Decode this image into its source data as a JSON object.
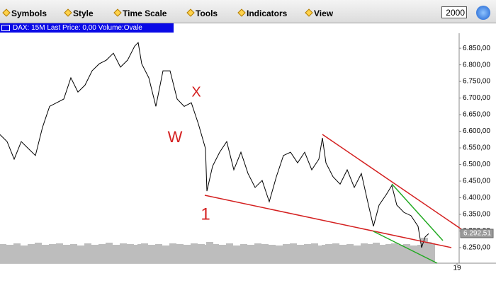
{
  "toolbar": {
    "menus": [
      "Symbols",
      "Style",
      "Time Scale",
      "Tools",
      "Indicators",
      "View"
    ],
    "year_input": "2000"
  },
  "chart_data": {
    "type": "line",
    "title": "DAX: 15M Last Price: 0,00 Volume:Ovale",
    "x": [
      0,
      10,
      20,
      30,
      40,
      50,
      60,
      70,
      80,
      90,
      100,
      110,
      120,
      130,
      140,
      150,
      160,
      170,
      180,
      190,
      195,
      200,
      210,
      220,
      230,
      240,
      250,
      260,
      270,
      280,
      290,
      292,
      300,
      310,
      320,
      330,
      340,
      350,
      360,
      370,
      380,
      390,
      400,
      410,
      420,
      430,
      440,
      450,
      455,
      460,
      470,
      480,
      490,
      500,
      510,
      520,
      527,
      535,
      545,
      553,
      560,
      570,
      580,
      590,
      595,
      600,
      605
    ],
    "series": [
      {
        "name": "Last Price",
        "color": "#000000",
        "values": [
          6590,
          6569,
          6516,
          6569,
          6548,
          6527,
          6612,
          6675,
          6686,
          6697,
          6761,
          6718,
          6739,
          6782,
          6803,
          6814,
          6835,
          6793,
          6814,
          6856,
          6867,
          6803,
          6761,
          6675,
          6782,
          6782,
          6697,
          6675,
          6686,
          6622,
          6548,
          6420,
          6495,
          6537,
          6569,
          6484,
          6537,
          6473,
          6431,
          6452,
          6388,
          6463,
          6527,
          6537,
          6505,
          6537,
          6484,
          6516,
          6580,
          6505,
          6463,
          6441,
          6484,
          6431,
          6473,
          6378,
          6314,
          6378,
          6409,
          6437,
          6378,
          6356,
          6346,
          6314,
          6250,
          6282,
          6292
        ]
      },
      {
        "name": "Volume",
        "color": "#bdbdbd",
        "axis": "y2",
        "values": [
          27,
          26,
          28,
          25,
          27,
          29,
          26,
          27,
          28,
          26,
          27,
          25,
          28,
          26,
          27,
          29,
          26,
          28,
          27,
          26,
          27,
          28,
          26,
          27,
          25,
          28,
          27,
          26,
          28,
          27,
          26,
          30,
          27,
          26,
          28,
          25,
          27,
          26,
          28,
          27,
          26,
          25,
          27,
          28,
          26,
          27,
          28,
          25,
          26,
          27,
          28,
          26,
          27,
          25,
          28,
          27,
          29,
          26,
          27,
          28,
          26,
          27,
          25,
          26,
          36,
          30,
          28
        ]
      }
    ],
    "xlim": [
      0,
      648
    ],
    "xticks": [
      {
        "value": 645,
        "label": "19"
      }
    ],
    "ylim": [
      6203,
      6895
    ],
    "yticks": [
      {
        "value": 6250,
        "label": "6.250,00"
      },
      {
        "value": 6300,
        "label": "6.300,00"
      },
      {
        "value": 6350,
        "label": "6.350,00"
      },
      {
        "value": 6400,
        "label": "6.400,00"
      },
      {
        "value": 6450,
        "label": "6.450,00"
      },
      {
        "value": 6500,
        "label": "6.500,00"
      },
      {
        "value": 6550,
        "label": "6.550,00"
      },
      {
        "value": 6600,
        "label": "6.600,00"
      },
      {
        "value": 6650,
        "label": "6.650,00"
      },
      {
        "value": 6700,
        "label": "6.700,00"
      },
      {
        "value": 6750,
        "label": "6.750,00"
      },
      {
        "value": 6800,
        "label": "6.800,00"
      },
      {
        "value": 6850,
        "label": "6.850,00"
      }
    ],
    "y2lim": [
      0,
      325
    ],
    "last_price": {
      "value": 6292.51,
      "label": "6.292,51"
    },
    "annotations": [
      "X",
      "W",
      "1"
    ]
  }
}
